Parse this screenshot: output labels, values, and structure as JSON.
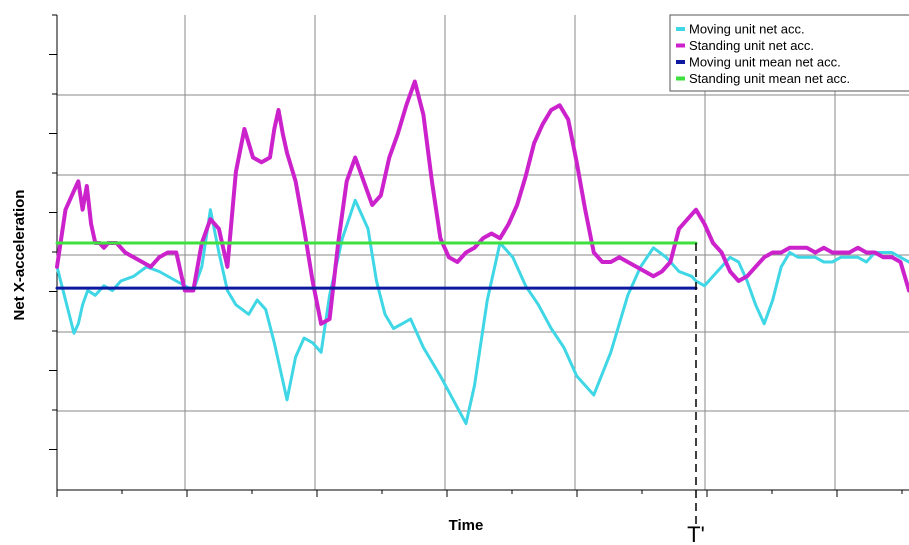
{
  "chart_data": {
    "type": "line",
    "xlabel": "Time",
    "ylabel": "Net X-acceleration",
    "xlim": [
      0,
      100
    ],
    "ylim": [
      -4.7,
      5.3
    ],
    "grid": true,
    "legend_placement": "top-right",
    "annotations": [
      {
        "label": "T'",
        "x": 75
      }
    ],
    "colors": {
      "moving": "#3fd6e6",
      "standing": "#cc22cc",
      "moving_mean": "#0d1aa0",
      "standing_mean": "#3ee03e",
      "grid": "#8a8a8a",
      "axis": "#000000"
    },
    "series": [
      {
        "name": "Moving unit net acc.",
        "color": "#3fd6e6",
        "x": [
          0,
          1,
          2,
          2.5,
          3,
          3.6,
          4.5,
          5.5,
          6.5,
          7.5,
          9,
          10.5,
          12,
          14,
          16,
          17,
          18,
          19,
          20,
          21,
          22.5,
          23.5,
          24.5,
          25.5,
          26.5,
          27,
          28,
          29,
          30,
          31,
          32,
          33.5,
          35,
          36.5,
          37.5,
          38.5,
          39.5,
          40.5,
          41.5,
          43,
          45,
          46.5,
          48,
          49,
          50.5,
          52,
          53.5,
          55,
          56.5,
          58,
          59.5,
          61,
          63,
          65,
          67,
          68.5,
          70,
          71.5,
          73,
          74.5,
          75,
          76,
          77,
          78,
          79,
          80,
          81,
          82,
          83,
          84,
          85,
          86,
          87,
          88,
          89,
          90,
          91,
          92,
          93,
          94,
          95,
          96,
          97,
          98,
          99,
          100
        ],
        "values": [
          0,
          -0.7,
          -1.4,
          -1.2,
          -0.8,
          -0.5,
          -0.6,
          -0.4,
          -0.5,
          -0.3,
          -0.2,
          0,
          -0.1,
          -0.3,
          -0.5,
          0,
          1.2,
          0.3,
          -0.5,
          -0.8,
          -1,
          -0.7,
          -0.9,
          -1.6,
          -2.4,
          -2.8,
          -1.9,
          -1.5,
          -1.6,
          -1.8,
          -0.6,
          0.6,
          1.4,
          0.8,
          -0.3,
          -1,
          -1.3,
          -1.2,
          -1.1,
          -1.7,
          -2.3,
          -2.8,
          -3.3,
          -2.5,
          -0.7,
          0.5,
          0.2,
          -0.4,
          -0.8,
          -1.3,
          -1.7,
          -2.3,
          -2.7,
          -1.8,
          -0.6,
          0,
          0.4,
          0.2,
          -0.1,
          -0.2,
          -0.3,
          -0.4,
          -0.2,
          0,
          0.2,
          0.1,
          -0.3,
          -0.8,
          -1.2,
          -0.7,
          0,
          0.3,
          0.2,
          0.2,
          0.2,
          0.1,
          0.1,
          0.2,
          0.2,
          0.2,
          0.1,
          0.3,
          0.3,
          0.3,
          0.2,
          0.1
        ],
        "x_sampled": true
      },
      {
        "name": "Standing unit net acc.",
        "color": "#cc22cc",
        "x": [
          0,
          1,
          2,
          2.5,
          3,
          3.5,
          4,
          4.5,
          5,
          5.5,
          6,
          7,
          8,
          9,
          10,
          11,
          12,
          13,
          14,
          15,
          16,
          17,
          18,
          19,
          20,
          21,
          22,
          23,
          24,
          25,
          25.5,
          26,
          26.5,
          27,
          28,
          29,
          30,
          31,
          32,
          33,
          34,
          35,
          36,
          37,
          38,
          39,
          40,
          41,
          42,
          43,
          44,
          45,
          46,
          47,
          48,
          49,
          50,
          51,
          52,
          53,
          54,
          55,
          56,
          57,
          58,
          59,
          60,
          61,
          62,
          63,
          64,
          65,
          66,
          67,
          68,
          69,
          70,
          71,
          72,
          73,
          74,
          75,
          76,
          77,
          78,
          79,
          80,
          81,
          82,
          83,
          84,
          85,
          86,
          87,
          88,
          89,
          90,
          91,
          92,
          93,
          94,
          95,
          96,
          97,
          98,
          99,
          100
        ],
        "values": [
          0,
          1.2,
          1.6,
          1.8,
          1.2,
          1.7,
          0.9,
          0.5,
          0.5,
          0.4,
          0.5,
          0.5,
          0.3,
          0.2,
          0.1,
          0,
          0.2,
          0.3,
          0.3,
          -0.5,
          -0.5,
          0.5,
          1,
          0.8,
          0,
          2,
          2.9,
          2.3,
          2.2,
          2.3,
          2.9,
          3.3,
          2.8,
          2.4,
          1.8,
          0.8,
          -0.3,
          -1.2,
          -1.1,
          0.5,
          1.8,
          2.3,
          1.8,
          1.3,
          1.5,
          2.3,
          2.8,
          3.4,
          3.9,
          3.2,
          1.8,
          0.6,
          0.2,
          0.1,
          0.3,
          0.4,
          0.6,
          0.7,
          0.6,
          0.9,
          1.3,
          1.9,
          2.6,
          3,
          3.3,
          3.4,
          3.1,
          2.2,
          1.2,
          0.3,
          0.1,
          0.1,
          0.2,
          0.1,
          0,
          -0.1,
          -0.2,
          -0.1,
          0.1,
          0.8,
          1,
          1.2,
          0.9,
          0.5,
          0.3,
          -0.1,
          -0.3,
          -0.2,
          0,
          0.2,
          0.3,
          0.3,
          0.4,
          0.4,
          0.4,
          0.3,
          0.4,
          0.3,
          0.3,
          0.3,
          0.4,
          0.3,
          0.3,
          0.2,
          0.2,
          0.1,
          -0.5
        ],
        "x_sampled": true
      },
      {
        "name": "Moving unit mean net acc.",
        "color": "#0d1aa0",
        "x": [
          0,
          75
        ],
        "values": [
          -0.45,
          -0.45
        ]
      },
      {
        "name": "Standing unit mean net acc.",
        "color": "#3ee03e",
        "x": [
          0,
          75
        ],
        "values": [
          0.5,
          0.5
        ]
      }
    ]
  }
}
